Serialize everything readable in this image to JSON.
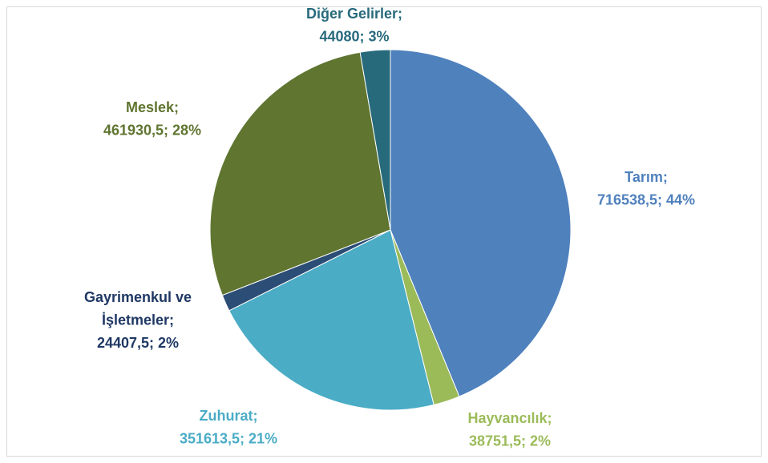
{
  "chart_data": {
    "type": "pie",
    "categories": [
      "Tarım",
      "Hayvancılık",
      "Zuhurat",
      "Gayrimenkul ve İşletmeler",
      "Meslek",
      "Diğer Gelirler"
    ],
    "values": [
      716538.5,
      38751.5,
      351613.5,
      24407.5,
      461930.5,
      44080
    ],
    "value_labels": [
      "716538,5",
      "38751,5",
      "351613,5",
      "24407,5",
      "461930,5",
      "44080"
    ],
    "percent_labels": [
      "44%",
      "2%",
      "21%",
      "2%",
      "28%",
      "3%"
    ],
    "separator": ";",
    "colors": [
      "#4f81bd",
      "#9bbb59",
      "#4bacc6",
      "#2c4d75",
      "#5f7530",
      "#276a7c"
    ],
    "label_colors": [
      "#4f81bd",
      "#9bbb59",
      "#4bacc6",
      "#1f3864",
      "#5f7530",
      "#276a7c"
    ]
  }
}
